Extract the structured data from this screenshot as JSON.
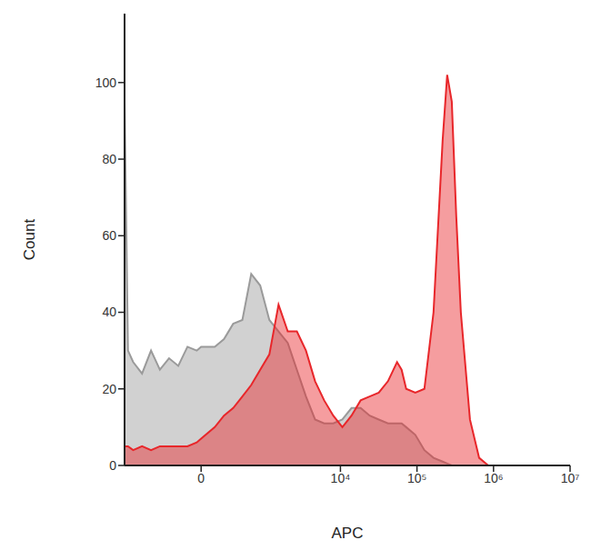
{
  "chart_data": {
    "type": "area",
    "x_label": "APC",
    "y_label": "Count",
    "x": [
      -1500,
      -1350,
      -1150,
      -870,
      -650,
      -480,
      -340,
      -225,
      -128,
      -40,
      0,
      128,
      225,
      340,
      480,
      650,
      870,
      1160,
      1540,
      2040,
      2690,
      3540,
      4660,
      6130,
      8060,
      10600,
      13960,
      18360,
      24100,
      31700,
      41800,
      54900,
      63000,
      72300,
      95100,
      125000,
      164500,
      216500,
      248000,
      285000,
      326000,
      374000,
      492000,
      648000,
      852000,
      1470000,
      4400000,
      10000000
    ],
    "series": [
      {
        "color": "#9a9a9a",
        "values": [
          95,
          30,
          27,
          24,
          30,
          25,
          28,
          26,
          31,
          30,
          31,
          31,
          33,
          37,
          38,
          50,
          47,
          38,
          35,
          32,
          25,
          18,
          12,
          11,
          11,
          12,
          15,
          15,
          13,
          12,
          11,
          11,
          11,
          10,
          8,
          4,
          2,
          1,
          0.5,
          0,
          0,
          0,
          0,
          0,
          0,
          0,
          0,
          0
        ]
      },
      {
        "color": "#e8262a",
        "values": [
          5,
          5,
          4,
          5,
          4,
          5,
          5,
          5,
          5,
          6,
          7,
          10,
          13,
          15,
          18,
          21,
          25,
          29,
          42,
          35,
          35,
          30,
          22,
          17,
          13,
          10,
          13,
          17,
          18,
          19,
          22,
          27,
          25,
          20,
          19,
          20,
          40,
          85,
          102,
          95,
          65,
          40,
          12,
          2,
          0,
          0,
          0,
          0
        ]
      }
    ],
    "xlim": [
      -1500,
      10000000
    ],
    "xticks": [
      0,
      {
        "value": 10000,
        "label": "10⁴"
      },
      {
        "value": 100000,
        "label": "10⁵"
      },
      {
        "value": 1000000,
        "label": "10⁶"
      },
      {
        "value": 10000000,
        "label": "10⁷"
      }
    ],
    "ylim": [
      0,
      118
    ],
    "yticks": [
      0,
      20,
      40,
      60,
      80,
      100
    ],
    "grid": false
  }
}
